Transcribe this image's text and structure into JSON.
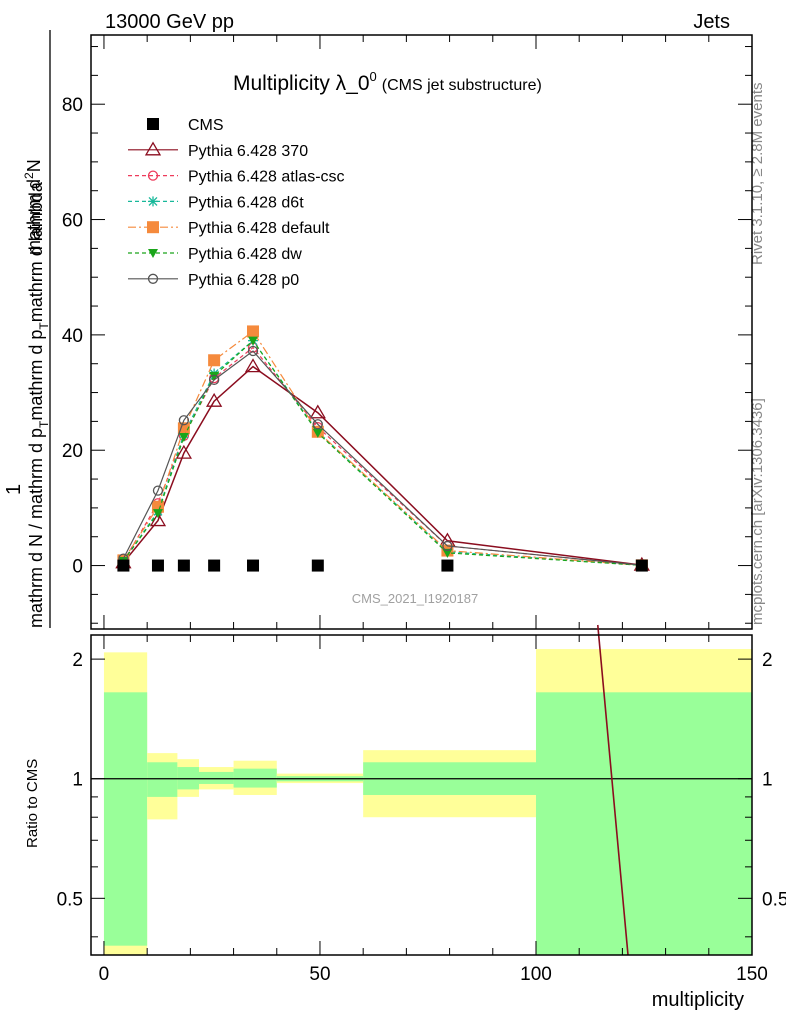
{
  "header": {
    "energy": "13000 GeV pp",
    "category": "Jets",
    "side_right_top": "Rivet 3.1.10, ≥ 2.8M events",
    "side_right_bottom": "mcplots.cern.ch [arXiv:1306.3436]"
  },
  "chart_data": [
    {
      "type": "line",
      "title": "Multiplicity λ_0",
      "title_superscript": "0",
      "subtitle": "(CMS jet substructure)",
      "watermark": "CMS_2021_I1920187",
      "ylabel_numerator": "1",
      "ylabel_numerator_parts": [
        "mathrm d",
        "2",
        "N"
      ],
      "ylabel_denominator_parts": [
        "mathrm d N / mathrm d p",
        "T",
        "mathrm d p",
        "T",
        "mathrm d lambda"
      ],
      "xlim": [
        -3,
        150
      ],
      "ylim": [
        -11,
        92
      ],
      "xticks": [
        0,
        50,
        100,
        150
      ],
      "yticks": [
        0,
        20,
        40,
        60,
        80
      ],
      "legend_position": "top-left",
      "x": [
        4.5,
        12.5,
        18.5,
        25.5,
        34.5,
        49.5,
        79.5,
        124.5
      ],
      "series": [
        {
          "name": "CMS",
          "color": "#000000",
          "style": "solid",
          "marker": "square",
          "values": [
            0,
            0,
            0,
            0,
            0,
            0,
            0,
            0
          ]
        },
        {
          "name": "Pythia 6.428 370",
          "color": "#8b0d1f",
          "style": "solid",
          "marker": "triangle-open",
          "values": [
            0.5,
            7.8,
            19.5,
            28.5,
            34.5,
            26.5,
            4.3,
            0.08
          ]
        },
        {
          "name": "Pythia 6.428 atlas-csc",
          "color": "#ee3b5b",
          "style": "dashed",
          "marker": "circle-open",
          "values": [
            0.7,
            10.8,
            22.5,
            32.5,
            37.8,
            24.0,
            3.4,
            0.05
          ]
        },
        {
          "name": "Pythia 6.428 d6t",
          "color": "#18b89a",
          "style": "dashed",
          "marker": "star",
          "values": [
            0.8,
            9.4,
            22.8,
            33.3,
            39.0,
            23.2,
            2.4,
            0.04
          ]
        },
        {
          "name": "Pythia 6.428 default",
          "color": "#f58a3c",
          "style": "dashdot",
          "marker": "square",
          "values": [
            0.9,
            10.2,
            23.8,
            35.6,
            40.6,
            23.2,
            2.6,
            0.04
          ]
        },
        {
          "name": "Pythia 6.428 dw",
          "color": "#1aa51a",
          "style": "dashed",
          "marker": "triangle-down",
          "values": [
            0.8,
            9.1,
            22.3,
            32.9,
            39.0,
            23.0,
            2.2,
            0.04
          ]
        },
        {
          "name": "Pythia 6.428 p0",
          "color": "#555555",
          "style": "solid",
          "marker": "circle-open",
          "values": [
            1.2,
            13.0,
            25.2,
            32.2,
            37.2,
            24.5,
            3.4,
            0.06
          ]
        }
      ]
    },
    {
      "type": "area",
      "ylabel": "Ratio to CMS",
      "xlabel": "multiplicity",
      "xlim": [
        -3,
        150
      ],
      "ylim": [
        0.36,
        2.3
      ],
      "scale": "log",
      "yticks": [
        0.5,
        1,
        2
      ],
      "ytick_labels": [
        "0.5",
        "1",
        "2"
      ],
      "bins": [
        {
          "lo": 0,
          "hi": 10,
          "stat_lo": 0.38,
          "stat_hi": 1.65,
          "tot_lo": 0.35,
          "tot_hi": 2.08
        },
        {
          "lo": 10,
          "hi": 17,
          "stat_lo": 0.9,
          "stat_hi": 1.1,
          "tot_lo": 0.79,
          "tot_hi": 1.16
        },
        {
          "lo": 17,
          "hi": 22,
          "stat_lo": 0.94,
          "stat_hi": 1.07,
          "tot_lo": 0.9,
          "tot_hi": 1.12
        },
        {
          "lo": 22,
          "hi": 30,
          "stat_lo": 0.97,
          "stat_hi": 1.04,
          "tot_lo": 0.94,
          "tot_hi": 1.07
        },
        {
          "lo": 30,
          "hi": 40,
          "stat_lo": 0.95,
          "stat_hi": 1.06,
          "tot_lo": 0.91,
          "tot_hi": 1.11
        },
        {
          "lo": 40,
          "hi": 60,
          "stat_lo": 0.985,
          "stat_hi": 1.015,
          "tot_lo": 0.975,
          "tot_hi": 1.03
        },
        {
          "lo": 60,
          "hi": 100,
          "stat_lo": 0.91,
          "stat_hi": 1.1,
          "tot_lo": 0.8,
          "tot_hi": 1.18
        },
        {
          "lo": 100,
          "hi": 150,
          "stat_lo": 0.35,
          "stat_hi": 1.65,
          "tot_lo": 0.35,
          "tot_hi": 2.12
        }
      ],
      "series": [
        {
          "name": "Pythia 6.428 370",
          "color": "#8b0d1f",
          "x": [
            114.3,
            121.3
          ],
          "values": [
            2.35,
            0.36
          ]
        }
      ]
    }
  ]
}
